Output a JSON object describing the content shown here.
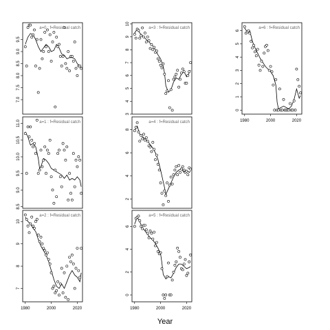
{
  "figure": {
    "xlabel": "Year"
  },
  "chart_data": [
    {
      "type": "scatter",
      "title": "a=0  :  f=Residual catch",
      "xlim": [
        1978,
        2024
      ],
      "ylim": [
        6.4,
        10.2
      ],
      "yticks": [
        "7.0",
        "7.5",
        "8.0",
        "8.5",
        "9.0",
        "9.5"
      ],
      "yticks_at": [
        7.0,
        7.5,
        8.0,
        8.5,
        9.0,
        9.5
      ],
      "xticks": [],
      "xticks_at": [],
      "points": {
        "x": [
          1980,
          1981,
          1982,
          1983,
          1984,
          1985,
          1986,
          1987,
          1988,
          1989,
          1990,
          1991,
          1992,
          1993,
          1994,
          1995,
          1996,
          1997,
          1998,
          1999,
          2000,
          2001,
          2002,
          2003,
          2004,
          2005,
          2006,
          2007,
          2008,
          2009,
          2010,
          2011,
          2012,
          2013,
          2014,
          2015,
          2016,
          2017,
          2018,
          2019,
          2020,
          2021,
          2022,
          2023
        ],
        "y": [
          9.2,
          8.4,
          10.0,
          10.1,
          10.1,
          9.6,
          9.7,
          9.9,
          8.4,
          9.5,
          7.3,
          8.3,
          9.5,
          8.7,
          9.0,
          9.8,
          9.2,
          9.9,
          9.0,
          9.7,
          8.6,
          9.4,
          9.8,
          6.7,
          9.6,
          9.2,
          9.3,
          8.8,
          8.4,
          8.8,
          10.0,
          8.5,
          8.3,
          9.0,
          8.2,
          8.8,
          8.8,
          8.6,
          9.4,
          8.3,
          8.0,
          8.4,
          8.4,
          8.3
        ]
      },
      "line": {
        "x": [
          1980,
          1982,
          1984,
          1986,
          1988,
          1990,
          1992,
          1994,
          1996,
          1998,
          2000,
          2002,
          2004,
          2006,
          2008,
          2010,
          2012,
          2014,
          2016,
          2018,
          2020,
          2022,
          2023
        ],
        "y": [
          9.3,
          9.6,
          9.75,
          9.7,
          9.5,
          9.2,
          9.0,
          9.15,
          9.3,
          9.2,
          9.0,
          9.05,
          9.3,
          9.15,
          8.9,
          8.85,
          8.7,
          8.75,
          8.75,
          8.7,
          8.5,
          8.4,
          8.35
        ]
      }
    },
    {
      "type": "scatter",
      "title": "a=1  :  f=Residual catch",
      "xlim": [
        1978,
        2024
      ],
      "ylim": [
        8.45,
        11.2
      ],
      "yticks": [
        "8.5",
        "9.0",
        "9.5",
        "10.0",
        "10.5",
        "11.0"
      ],
      "yticks_at": [
        8.5,
        9.0,
        9.5,
        10.0,
        10.5,
        11.0
      ],
      "xticks": [],
      "xticks_at": [],
      "points": {
        "x": [
          1980,
          1981,
          1982,
          1983,
          1984,
          1985,
          1986,
          1987,
          1988,
          1989,
          1990,
          1991,
          1992,
          1993,
          1994,
          1995,
          1996,
          1997,
          1998,
          1999,
          2000,
          2001,
          2002,
          2003,
          2004,
          2005,
          2006,
          2007,
          2008,
          2009,
          2010,
          2011,
          2012,
          2013,
          2014,
          2015,
          2016,
          2017,
          2018,
          2019,
          2020,
          2021,
          2022,
          2023
        ],
        "y": [
          10.7,
          9.5,
          10.9,
          10.6,
          10.9,
          10.5,
          10.3,
          10.4,
          10.1,
          11.1,
          9.5,
          9.6,
          10.2,
          9.7,
          9.9,
          10.3,
          9.5,
          10.2,
          10.1,
          10.5,
          9.4,
          9.0,
          8.6,
          9.6,
          8.8,
          10.1,
          10.2,
          9.4,
          9.1,
          10.4,
          10.2,
          9.9,
          10.3,
          8.7,
          9.5,
          8.9,
          8.7,
          10.1,
          9.1,
          9.9,
          9.7,
          10.0,
          9.9,
          8.9
        ]
      },
      "line": {
        "x": [
          1980,
          1982,
          1984,
          1986,
          1988,
          1990,
          1991,
          1992,
          1994,
          1996,
          1998,
          2000,
          2002,
          2004,
          2006,
          2008,
          2010,
          2012,
          2014,
          2016,
          2018,
          2020,
          2022,
          2023
        ],
        "y": [
          10.75,
          10.6,
          10.35,
          10.4,
          10.3,
          9.95,
          9.65,
          9.7,
          9.95,
          9.9,
          9.8,
          9.65,
          9.6,
          9.55,
          9.5,
          9.45,
          9.35,
          9.45,
          9.3,
          9.35,
          9.3,
          9.4,
          9.3,
          9.1
        ]
      }
    },
    {
      "type": "scatter",
      "title": "a=2  :  f=Residual catch",
      "xlim": [
        1978,
        2024
      ],
      "ylim": [
        6.4,
        10.5
      ],
      "yticks": [
        "7",
        "8",
        "9",
        "10"
      ],
      "yticks_at": [
        7,
        8,
        9,
        10
      ],
      "xticks": [
        "1980",
        "2000",
        "2020"
      ],
      "xticks_at": [
        1980,
        2000,
        2020
      ],
      "points": {
        "x": [
          1980,
          1981,
          1982,
          1983,
          1984,
          1985,
          1986,
          1987,
          1988,
          1989,
          1990,
          1991,
          1992,
          1993,
          1994,
          1995,
          1996,
          1997,
          1998,
          1999,
          2000,
          2001,
          2002,
          2003,
          2004,
          2005,
          2006,
          2007,
          2008,
          2009,
          2010,
          2011,
          2012,
          2013,
          2014,
          2015,
          2016,
          2017,
          2018,
          2019,
          2020,
          2021,
          2022,
          2023
        ],
        "y": [
          10.3,
          10.1,
          9.8,
          9.5,
          9.9,
          10.2,
          9.8,
          9.7,
          10.0,
          10.1,
          9.4,
          9.1,
          9.3,
          9.0,
          8.8,
          8.7,
          8.5,
          8.6,
          8.3,
          8.1,
          7.7,
          7.0,
          7.1,
          6.8,
          6.9,
          7.3,
          6.7,
          7.2,
          7.9,
          6.8,
          7.7,
          6.6,
          8.0,
          6.5,
          8.4,
          8.2,
          8.5,
          8.1,
          7.0,
          7.9,
          8.8,
          7.8,
          7.5,
          8.8
        ]
      },
      "line": {
        "x": [
          1980,
          1982,
          1984,
          1986,
          1988,
          1990,
          1992,
          1994,
          1996,
          1998,
          2000,
          2002,
          2004,
          2006,
          2008,
          2010,
          2012,
          2014,
          2016,
          2018,
          2020,
          2022,
          2023
        ],
        "y": [
          10.2,
          10.0,
          9.9,
          9.7,
          9.55,
          9.2,
          8.9,
          8.7,
          8.5,
          8.2,
          7.8,
          7.4,
          7.1,
          7.0,
          7.2,
          7.0,
          7.3,
          7.6,
          7.8,
          7.6,
          7.5,
          7.3,
          7.7
        ]
      }
    },
    {
      "type": "scatter",
      "title": "a=3  :  f=Residual catch",
      "xlim": [
        1978,
        2024
      ],
      "ylim": [
        3.0,
        10.1
      ],
      "yticks": [
        "3",
        "4",
        "5",
        "6",
        "7",
        "8",
        "9",
        "10"
      ],
      "yticks_at": [
        3,
        4,
        5,
        6,
        7,
        8,
        9,
        10
      ],
      "xticks": [],
      "xticks_at": [],
      "points": {
        "x": [
          1980,
          1981,
          1982,
          1983,
          1984,
          1985,
          1986,
          1987,
          1988,
          1989,
          1990,
          1991,
          1992,
          1993,
          1994,
          1995,
          1996,
          1997,
          1998,
          1999,
          2000,
          2001,
          2002,
          2003,
          2004,
          2005,
          2006,
          2007,
          2008,
          2009,
          2010,
          2011,
          2012,
          2013,
          2014,
          2015,
          2016,
          2017,
          2018,
          2019,
          2020,
          2021,
          2022,
          2023
        ],
        "y": [
          9.2,
          8.9,
          9.6,
          9.5,
          8.9,
          9.1,
          9.7,
          9.0,
          9.3,
          8.6,
          9.0,
          8.7,
          8.1,
          8.4,
          8.0,
          8.2,
          7.8,
          7.9,
          7.3,
          7.1,
          6.8,
          6.6,
          6.9,
          6.1,
          4.6,
          4.8,
          5.6,
          3.5,
          4.9,
          3.3,
          5.7,
          5.9,
          6.1,
          6.4,
          5.1,
          5.7,
          6.2,
          6.5,
          6.3,
          5.4,
          5.4,
          6.0,
          6.3,
          7.0
        ]
      },
      "line": {
        "x": [
          1980,
          1982,
          1984,
          1986,
          1988,
          1990,
          1992,
          1994,
          1996,
          1998,
          2000,
          2002,
          2003,
          2004,
          2006,
          2008,
          2010,
          2012,
          2014,
          2016,
          2018,
          2020,
          2022,
          2023
        ],
        "y": [
          9.3,
          9.6,
          9.3,
          9.1,
          8.9,
          8.7,
          8.5,
          8.3,
          8.0,
          7.6,
          7.3,
          6.7,
          6.2,
          5.2,
          4.7,
          4.9,
          5.5,
          5.8,
          5.7,
          6.1,
          6.3,
          5.9,
          6.2,
          6.4
        ]
      }
    },
    {
      "type": "scatter",
      "title": "a=4  :  f=Residual catch",
      "xlim": [
        1978,
        2024
      ],
      "ylim": [
        1.2,
        9.1
      ],
      "yticks": [
        "2",
        "4",
        "6",
        "8"
      ],
      "yticks_at": [
        2,
        4,
        6,
        8
      ],
      "xticks": [],
      "xticks_at": [],
      "points": {
        "x": [
          1980,
          1981,
          1982,
          1983,
          1984,
          1985,
          1986,
          1987,
          1988,
          1989,
          1990,
          1991,
          1992,
          1993,
          1994,
          1995,
          1996,
          1997,
          1998,
          1999,
          2000,
          2001,
          2002,
          2003,
          2004,
          2005,
          2006,
          2007,
          2008,
          2009,
          2010,
          2011,
          2012,
          2013,
          2014,
          2015,
          2016,
          2017,
          2018,
          2019,
          2020,
          2021,
          2022,
          2023
        ],
        "y": [
          7.9,
          8.2,
          8.6,
          7.8,
          7.0,
          7.5,
          7.2,
          7.6,
          7.1,
          7.3,
          7.0,
          6.6,
          6.5,
          6.1,
          6.9,
          6.3,
          5.4,
          5.8,
          5.0,
          4.5,
          3.4,
          2.5,
          1.5,
          2.7,
          2.3,
          3.4,
          1.8,
          3.2,
          3.9,
          3.3,
          4.1,
          4.5,
          4.8,
          4.1,
          4.9,
          4.3,
          4.6,
          4.8,
          4.5,
          4.3,
          4.4,
          4.1,
          4.7,
          4.6
        ]
      },
      "line": {
        "x": [
          1980,
          1982,
          1984,
          1986,
          1988,
          1990,
          1992,
          1994,
          1996,
          1998,
          2000,
          2002,
          2003,
          2004,
          2006,
          2008,
          2010,
          2012,
          2014,
          2016,
          2018,
          2020,
          2022,
          2023
        ],
        "y": [
          7.9,
          8.3,
          7.6,
          7.4,
          7.2,
          7.0,
          6.7,
          6.4,
          6.0,
          5.4,
          4.5,
          3.5,
          3.0,
          2.4,
          2.9,
          3.4,
          3.9,
          4.3,
          4.5,
          4.6,
          4.3,
          4.5,
          4.3,
          4.4
        ]
      }
    },
    {
      "type": "scatter",
      "title": "a=5  :  f=Residual catch",
      "xlim": [
        1978,
        2024
      ],
      "ylim": [
        -0.6,
        7.4
      ],
      "yticks": [
        "0",
        "2",
        "4",
        "6"
      ],
      "yticks_at": [
        0,
        2,
        4,
        6
      ],
      "xticks": [
        "1980",
        "2000",
        "2020"
      ],
      "xticks_at": [
        1980,
        2000,
        2020
      ],
      "points": {
        "x": [
          1980,
          1981,
          1982,
          1983,
          1984,
          1985,
          1986,
          1987,
          1988,
          1989,
          1990,
          1991,
          1992,
          1993,
          1994,
          1995,
          1996,
          1997,
          1998,
          1999,
          2000,
          2001,
          2002,
          2003,
          2004,
          2005,
          2006,
          2007,
          2008,
          2009,
          2010,
          2011,
          2012,
          2013,
          2014,
          2015,
          2016,
          2017,
          2018,
          2019,
          2020,
          2021,
          2022,
          2023
        ],
        "y": [
          6.0,
          6.7,
          6.8,
          6.9,
          6.5,
          6.0,
          5.8,
          6.1,
          6.1,
          5.7,
          5.4,
          5.0,
          5.6,
          5.4,
          4.9,
          5.5,
          4.3,
          4.6,
          3.8,
          3.6,
          3.7,
          2.3,
          0.0,
          -0.3,
          0.0,
          1.6,
          2.8,
          0.0,
          0.0,
          1.3,
          2.0,
          2.6,
          2.9,
          4.1,
          3.8,
          3.3,
          2.3,
          2.2,
          2.7,
          3.1,
          1.7,
          1.9,
          2.9,
          3.5
        ]
      },
      "line": {
        "x": [
          1980,
          1982,
          1984,
          1986,
          1988,
          1990,
          1992,
          1994,
          1996,
          1998,
          2000,
          2001,
          2002,
          2004,
          2006,
          2008,
          2010,
          2012,
          2014,
          2016,
          2018,
          2020,
          2022,
          2023
        ],
        "y": [
          6.2,
          6.8,
          6.4,
          5.9,
          5.6,
          5.3,
          5.0,
          4.8,
          4.5,
          4.1,
          3.6,
          2.8,
          1.8,
          1.4,
          1.6,
          1.5,
          1.9,
          2.4,
          2.7,
          2.7,
          2.5,
          2.3,
          2.4,
          2.5
        ]
      }
    },
    {
      "type": "scatter",
      "title": "a=6  :  f=Residual catch",
      "xlim": [
        1978,
        2024
      ],
      "ylim": [
        -0.3,
        6.6
      ],
      "yticks": [
        "0",
        "1",
        "2",
        "3",
        "4",
        "5",
        "6"
      ],
      "yticks_at": [
        0,
        1,
        2,
        3,
        4,
        5,
        6
      ],
      "xticks": [
        "1980",
        "2000",
        "2020"
      ],
      "xticks_at": [
        1980,
        2000,
        2020
      ],
      "points": {
        "x": [
          1980,
          1981,
          1982,
          1983,
          1984,
          1985,
          1986,
          1987,
          1988,
          1989,
          1990,
          1991,
          1992,
          1993,
          1994,
          1995,
          1996,
          1997,
          1998,
          1999,
          2000,
          2001,
          2002,
          2003,
          2004,
          2005,
          2006,
          2007,
          2008,
          2009,
          2010,
          2011,
          2012,
          2013,
          2014,
          2015,
          2016,
          2017,
          2018,
          2019,
          2020,
          2021,
          2022,
          2023
        ],
        "y": [
          6.3,
          5.8,
          5.9,
          6.0,
          5.8,
          5.2,
          4.7,
          4.9,
          4.4,
          4.1,
          4.6,
          3.4,
          3.0,
          3.7,
          3.3,
          4.3,
          4.8,
          4.9,
          4.5,
          3.0,
          3.3,
          2.9,
          1.9,
          0.0,
          2.3,
          0.0,
          0.0,
          1.6,
          0.0,
          0.0,
          0.8,
          0.0,
          0.0,
          0.0,
          0.0,
          0.5,
          0.0,
          0.0,
          0.7,
          0.0,
          3.1,
          2.3,
          1.8,
          1.3
        ]
      },
      "line": {
        "x": [
          1980,
          1982,
          1984,
          1986,
          1988,
          1990,
          1992,
          1994,
          1996,
          1998,
          2000,
          2002,
          2004,
          2005,
          2006,
          2008,
          2010,
          2012,
          2014,
          2016,
          2018,
          2020,
          2022,
          2023
        ],
        "y": [
          6.2,
          5.9,
          6.0,
          5.2,
          4.7,
          4.3,
          3.9,
          3.6,
          3.3,
          3.1,
          2.9,
          2.6,
          1.9,
          0.6,
          0.1,
          0.2,
          0.3,
          0.2,
          0.1,
          0.3,
          0.8,
          1.6,
          0.9,
          1.1
        ]
      }
    }
  ]
}
